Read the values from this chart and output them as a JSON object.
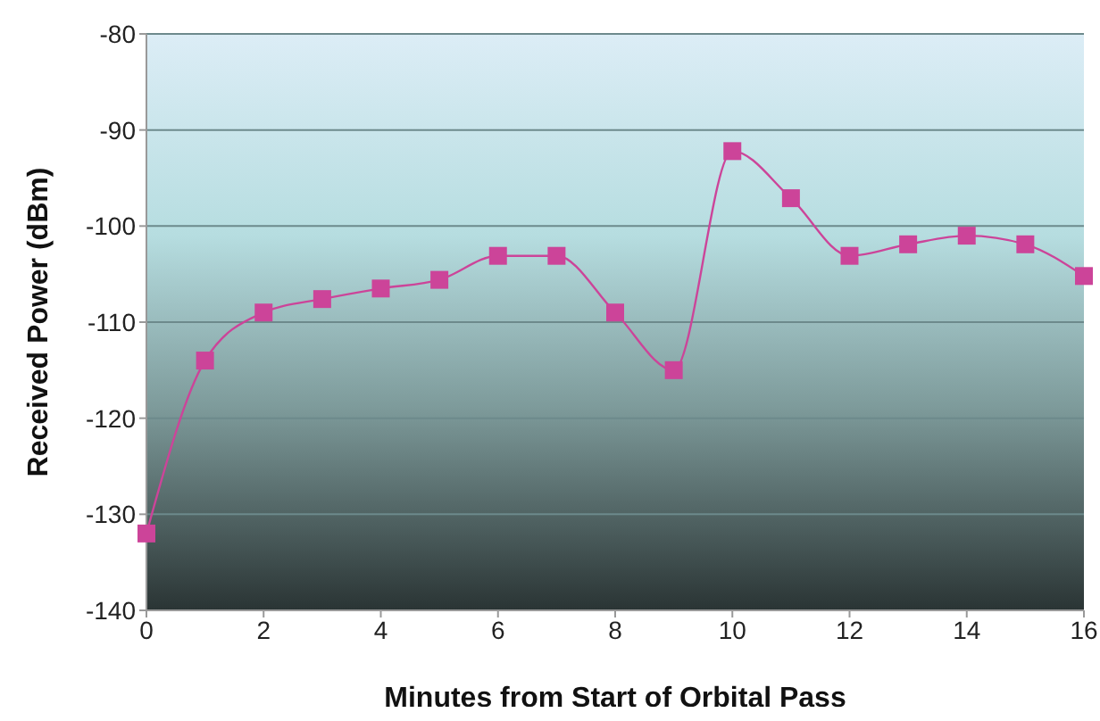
{
  "chart_data": {
    "type": "line",
    "xlabel": "Minutes from Start of Orbital Pass",
    "ylabel": "Received Power (dBm)",
    "x": [
      0,
      1,
      2,
      3,
      4,
      5,
      6,
      7,
      8,
      9,
      10,
      11,
      12,
      13,
      14,
      15,
      16
    ],
    "series": [
      {
        "color": "#cc4499",
        "values": [
          -132,
          -114,
          -109,
          -107.6,
          -106.5,
          -105.6,
          -103.1,
          -103.1,
          -109,
          -115,
          -92.2,
          -97.1,
          -103.1,
          -101.9,
          -101,
          -101.9,
          -105.2
        ]
      }
    ],
    "xlim": [
      0,
      16
    ],
    "xticks": [
      0,
      2,
      4,
      6,
      8,
      10,
      12,
      14,
      16
    ],
    "ylim": [
      -140,
      -80
    ],
    "yticks": [
      -140,
      -130,
      -120,
      -110,
      -100,
      -90,
      -80
    ],
    "grid": "y",
    "marker": "square",
    "line_style": "solid"
  }
}
